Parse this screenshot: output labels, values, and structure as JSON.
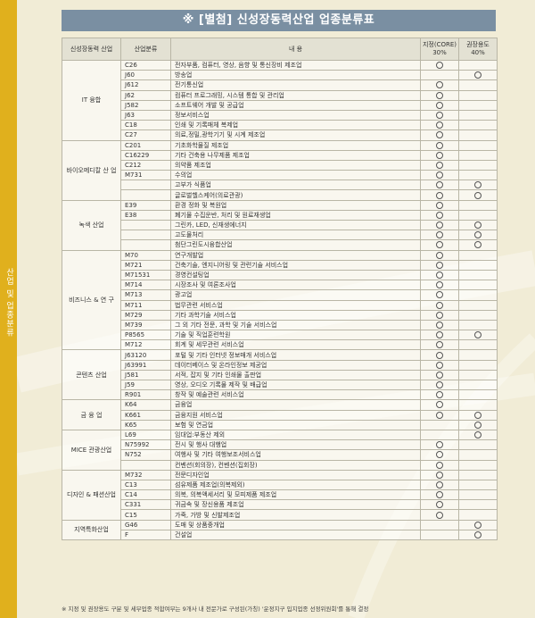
{
  "sidebar_label": "산업 및 업종분류",
  "title": "※ [별첨] 신성장동력산업 업종분류표",
  "headers": {
    "industry": "신성장동력 산업",
    "code": "산업분류",
    "content": "내 용",
    "designation_line1": "지정(CORE)",
    "designation_line2": "30%",
    "recommend_line1": "권장용도",
    "recommend_line2": "40%"
  },
  "groups": [
    {
      "name": "IT 융합",
      "rows": [
        {
          "code": "C26",
          "content": "전자부품, 컴퓨터, 영상, 음향 및 통신장비 제조업",
          "d": true,
          "r": false
        },
        {
          "code": "J60",
          "content": "방송업",
          "d": false,
          "r": true
        },
        {
          "code": "J612",
          "content": "전기통신업",
          "d": true,
          "r": false
        },
        {
          "code": "J62",
          "content": "컴퓨터 프로그래밍, 시스템 통합 및 관리업",
          "d": true,
          "r": false
        },
        {
          "code": "J582",
          "content": "소프트웨어 개발 및 공급업",
          "d": true,
          "r": false
        },
        {
          "code": "J63",
          "content": "정보서비스업",
          "d": true,
          "r": false
        },
        {
          "code": "C18",
          "content": "인쇄 및 기록매체 복제업",
          "d": true,
          "r": false
        },
        {
          "code": "C27",
          "content": "의료,정밀,광학기기 및 시계 제조업",
          "d": true,
          "r": false
        }
      ]
    },
    {
      "name": "바이오메디칼 산 업",
      "rows": [
        {
          "code": "C201",
          "content": "기초화학물질 제조업",
          "d": true,
          "r": false
        },
        {
          "code": "C16229",
          "content": "기타 건축용 나무제품 제조업",
          "d": true,
          "r": false
        },
        {
          "code": "C212",
          "content": "의약품 제조업",
          "d": true,
          "r": false
        },
        {
          "code": "M731",
          "content": "수의업",
          "d": true,
          "r": false
        },
        {
          "code": "",
          "content": "고부가 식품업",
          "d": true,
          "r": true
        },
        {
          "code": "",
          "content": "글로벌헬스케어(의료관광)",
          "d": true,
          "r": true
        }
      ]
    },
    {
      "name": "녹색 산업",
      "rows": [
        {
          "code": "E39",
          "content": "환경 정화 및 복원업",
          "d": true,
          "r": false
        },
        {
          "code": "E38",
          "content": "폐기물 수집운반, 처리 및 원료재생업",
          "d": true,
          "r": false
        },
        {
          "code": "",
          "content": "그린카, LED, 신재생에너지",
          "d": true,
          "r": true
        },
        {
          "code": "",
          "content": "고도물처리",
          "d": true,
          "r": true
        },
        {
          "code": "",
          "content": "첨단그린도시융합산업",
          "d": true,
          "r": true
        }
      ]
    },
    {
      "name": "비즈니스 & 연 구",
      "rows": [
        {
          "code": "M70",
          "content": "연구개발업",
          "d": true,
          "r": false
        },
        {
          "code": "M721",
          "content": "건축기술, 엔지니어링 및 관련기술 서비스업",
          "d": true,
          "r": false
        },
        {
          "code": "M71531",
          "content": "경영컨설팅업",
          "d": true,
          "r": false
        },
        {
          "code": "M714",
          "content": "시장조사 및 여론조사업",
          "d": true,
          "r": false
        },
        {
          "code": "M713",
          "content": "광고업",
          "d": true,
          "r": false
        },
        {
          "code": "M711",
          "content": "법무관련 서비스업",
          "d": true,
          "r": false
        },
        {
          "code": "M729",
          "content": "기타 과학기술 서비스업",
          "d": true,
          "r": false
        },
        {
          "code": "M739",
          "content": "그 외 기타 전문, 과학 및 기술 서비스업",
          "d": true,
          "r": false
        },
        {
          "code": "P8565",
          "content": "기술 및 직업훈련학원",
          "d": true,
          "r": true
        },
        {
          "code": "M712",
          "content": "회계 및 세무관련 서비스업",
          "d": true,
          "r": false
        }
      ]
    },
    {
      "name": "콘텐츠 산업",
      "rows": [
        {
          "code": "J63120",
          "content": "포털 및 기타 인터넷 정보매개 서비스업",
          "d": true,
          "r": false
        },
        {
          "code": "J63991",
          "content": "데이터베이스 및 온라인정보 제공업",
          "d": true,
          "r": false
        },
        {
          "code": "J581",
          "content": "서적, 잡지 및 기타 인쇄물 출판업",
          "d": true,
          "r": false
        },
        {
          "code": "J59",
          "content": "영상, 오디오 기록물 제작 및 배급업",
          "d": true,
          "r": false
        },
        {
          "code": "R901",
          "content": "창작 및 예술관련 서비스업",
          "d": true,
          "r": false
        }
      ]
    },
    {
      "name": "금 융 업",
      "rows": [
        {
          "code": "K64",
          "content": "금융업",
          "d": true,
          "r": false
        },
        {
          "code": "K661",
          "content": "금융지원 서비스업",
          "d": true,
          "r": true
        },
        {
          "code": "K65",
          "content": "보험 및 연금업",
          "d": false,
          "r": true
        }
      ]
    },
    {
      "name": "MICE 관광산업",
      "rows": [
        {
          "code": "L69",
          "content": "임대업:부동산 제외",
          "d": false,
          "r": true
        },
        {
          "code": "N75992",
          "content": "전시 및 행사 대행업",
          "d": true,
          "r": false
        },
        {
          "code": "N752",
          "content": "여행사 및 기타 여행보조서비스업",
          "d": true,
          "r": false
        },
        {
          "code": "",
          "content": "컨벤션(회의장), 컨벤션(집회장)",
          "d": true,
          "r": false
        }
      ]
    },
    {
      "name": "디자인 & 패션산업",
      "rows": [
        {
          "code": "M732",
          "content": "전문디자인업",
          "d": true,
          "r": false
        },
        {
          "code": "C13",
          "content": "섬유제품 제조업(의복제외)",
          "d": true,
          "r": false
        },
        {
          "code": "C14",
          "content": "의복, 의복액세서리 및 모피제품 제조업",
          "d": true,
          "r": false
        },
        {
          "code": "C331",
          "content": "귀금속 및 장신용품 제조업",
          "d": true,
          "r": false
        },
        {
          "code": "C15",
          "content": "가죽, 가방 및 신발제조업",
          "d": true,
          "r": false
        }
      ]
    },
    {
      "name": "지역특화산업",
      "rows": [
        {
          "code": "G46",
          "content": "도매 및 상품중개업",
          "d": false,
          "r": true
        },
        {
          "code": "F",
          "content": "건설업",
          "d": false,
          "r": true
        }
      ]
    }
  ],
  "footnote": "※ 지정 및 권장용도 구분 및 세부업종 적합여부는 9개사 내 전문가로 구성된(가칭) '운정지구 입지업종 선정위원회'를 통해 결정"
}
